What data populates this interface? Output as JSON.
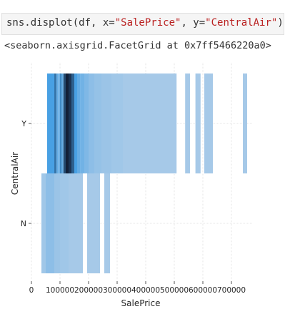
{
  "cell": {
    "code_prefix": "sns.displot(df, x=",
    "x_arg": "\"SalePrice\"",
    "code_middle": ", y=",
    "y_arg": "\"CentralAir\"",
    "code_suffix": ")",
    "output": "<seaborn.axisgrid.FacetGrid at 0x7ff5466220a0>"
  },
  "chart_data": {
    "type": "heatmap",
    "xlabel": "SalePrice",
    "ylabel": "CentralAir",
    "categories": [
      "Y",
      "N"
    ],
    "xlim": [
      0,
      775000
    ],
    "xticks": [
      0,
      100000,
      200000,
      300000,
      400000,
      500000,
      600000,
      700000
    ],
    "xtick_labels": [
      "0",
      "100000",
      "200000",
      "300000",
      "400000",
      "500000",
      "600000",
      "700000"
    ],
    "grid": true,
    "color": "#1f77b4",
    "series": [
      {
        "values": [
          [
            55000,
            80000,
            0.7
          ],
          [
            80000,
            88000,
            0.8
          ],
          [
            88000,
            93000,
            0.6
          ],
          [
            93000,
            100000,
            0.55
          ],
          [
            100000,
            106000,
            0.75
          ],
          [
            106000,
            112000,
            0.6
          ],
          [
            112000,
            120000,
            0.9
          ],
          [
            120000,
            130000,
            1.0
          ],
          [
            130000,
            140000,
            0.95
          ],
          [
            140000,
            150000,
            0.85
          ],
          [
            150000,
            160000,
            0.7
          ],
          [
            160000,
            172000,
            0.6
          ],
          [
            172000,
            185000,
            0.55
          ],
          [
            185000,
            200000,
            0.5
          ],
          [
            200000,
            220000,
            0.45
          ],
          [
            220000,
            245000,
            0.42
          ],
          [
            245000,
            280000,
            0.4
          ],
          [
            280000,
            320000,
            0.38
          ],
          [
            320000,
            360000,
            0.36
          ],
          [
            360000,
            400000,
            0.36
          ],
          [
            400000,
            450000,
            0.36
          ],
          [
            450000,
            508000,
            0.36
          ],
          [
            538000,
            555000,
            0.36
          ],
          [
            574000,
            592000,
            0.36
          ],
          [
            605000,
            635000,
            0.36
          ],
          [
            740000,
            755000,
            0.36
          ]
        ]
      },
      {
        "values": [
          [
            35000,
            50000,
            0.38
          ],
          [
            50000,
            80000,
            0.45
          ],
          [
            80000,
            100000,
            0.4
          ],
          [
            100000,
            130000,
            0.38
          ],
          [
            130000,
            180000,
            0.36
          ],
          [
            195000,
            240000,
            0.36
          ],
          [
            255000,
            275000,
            0.36
          ]
        ]
      }
    ]
  }
}
